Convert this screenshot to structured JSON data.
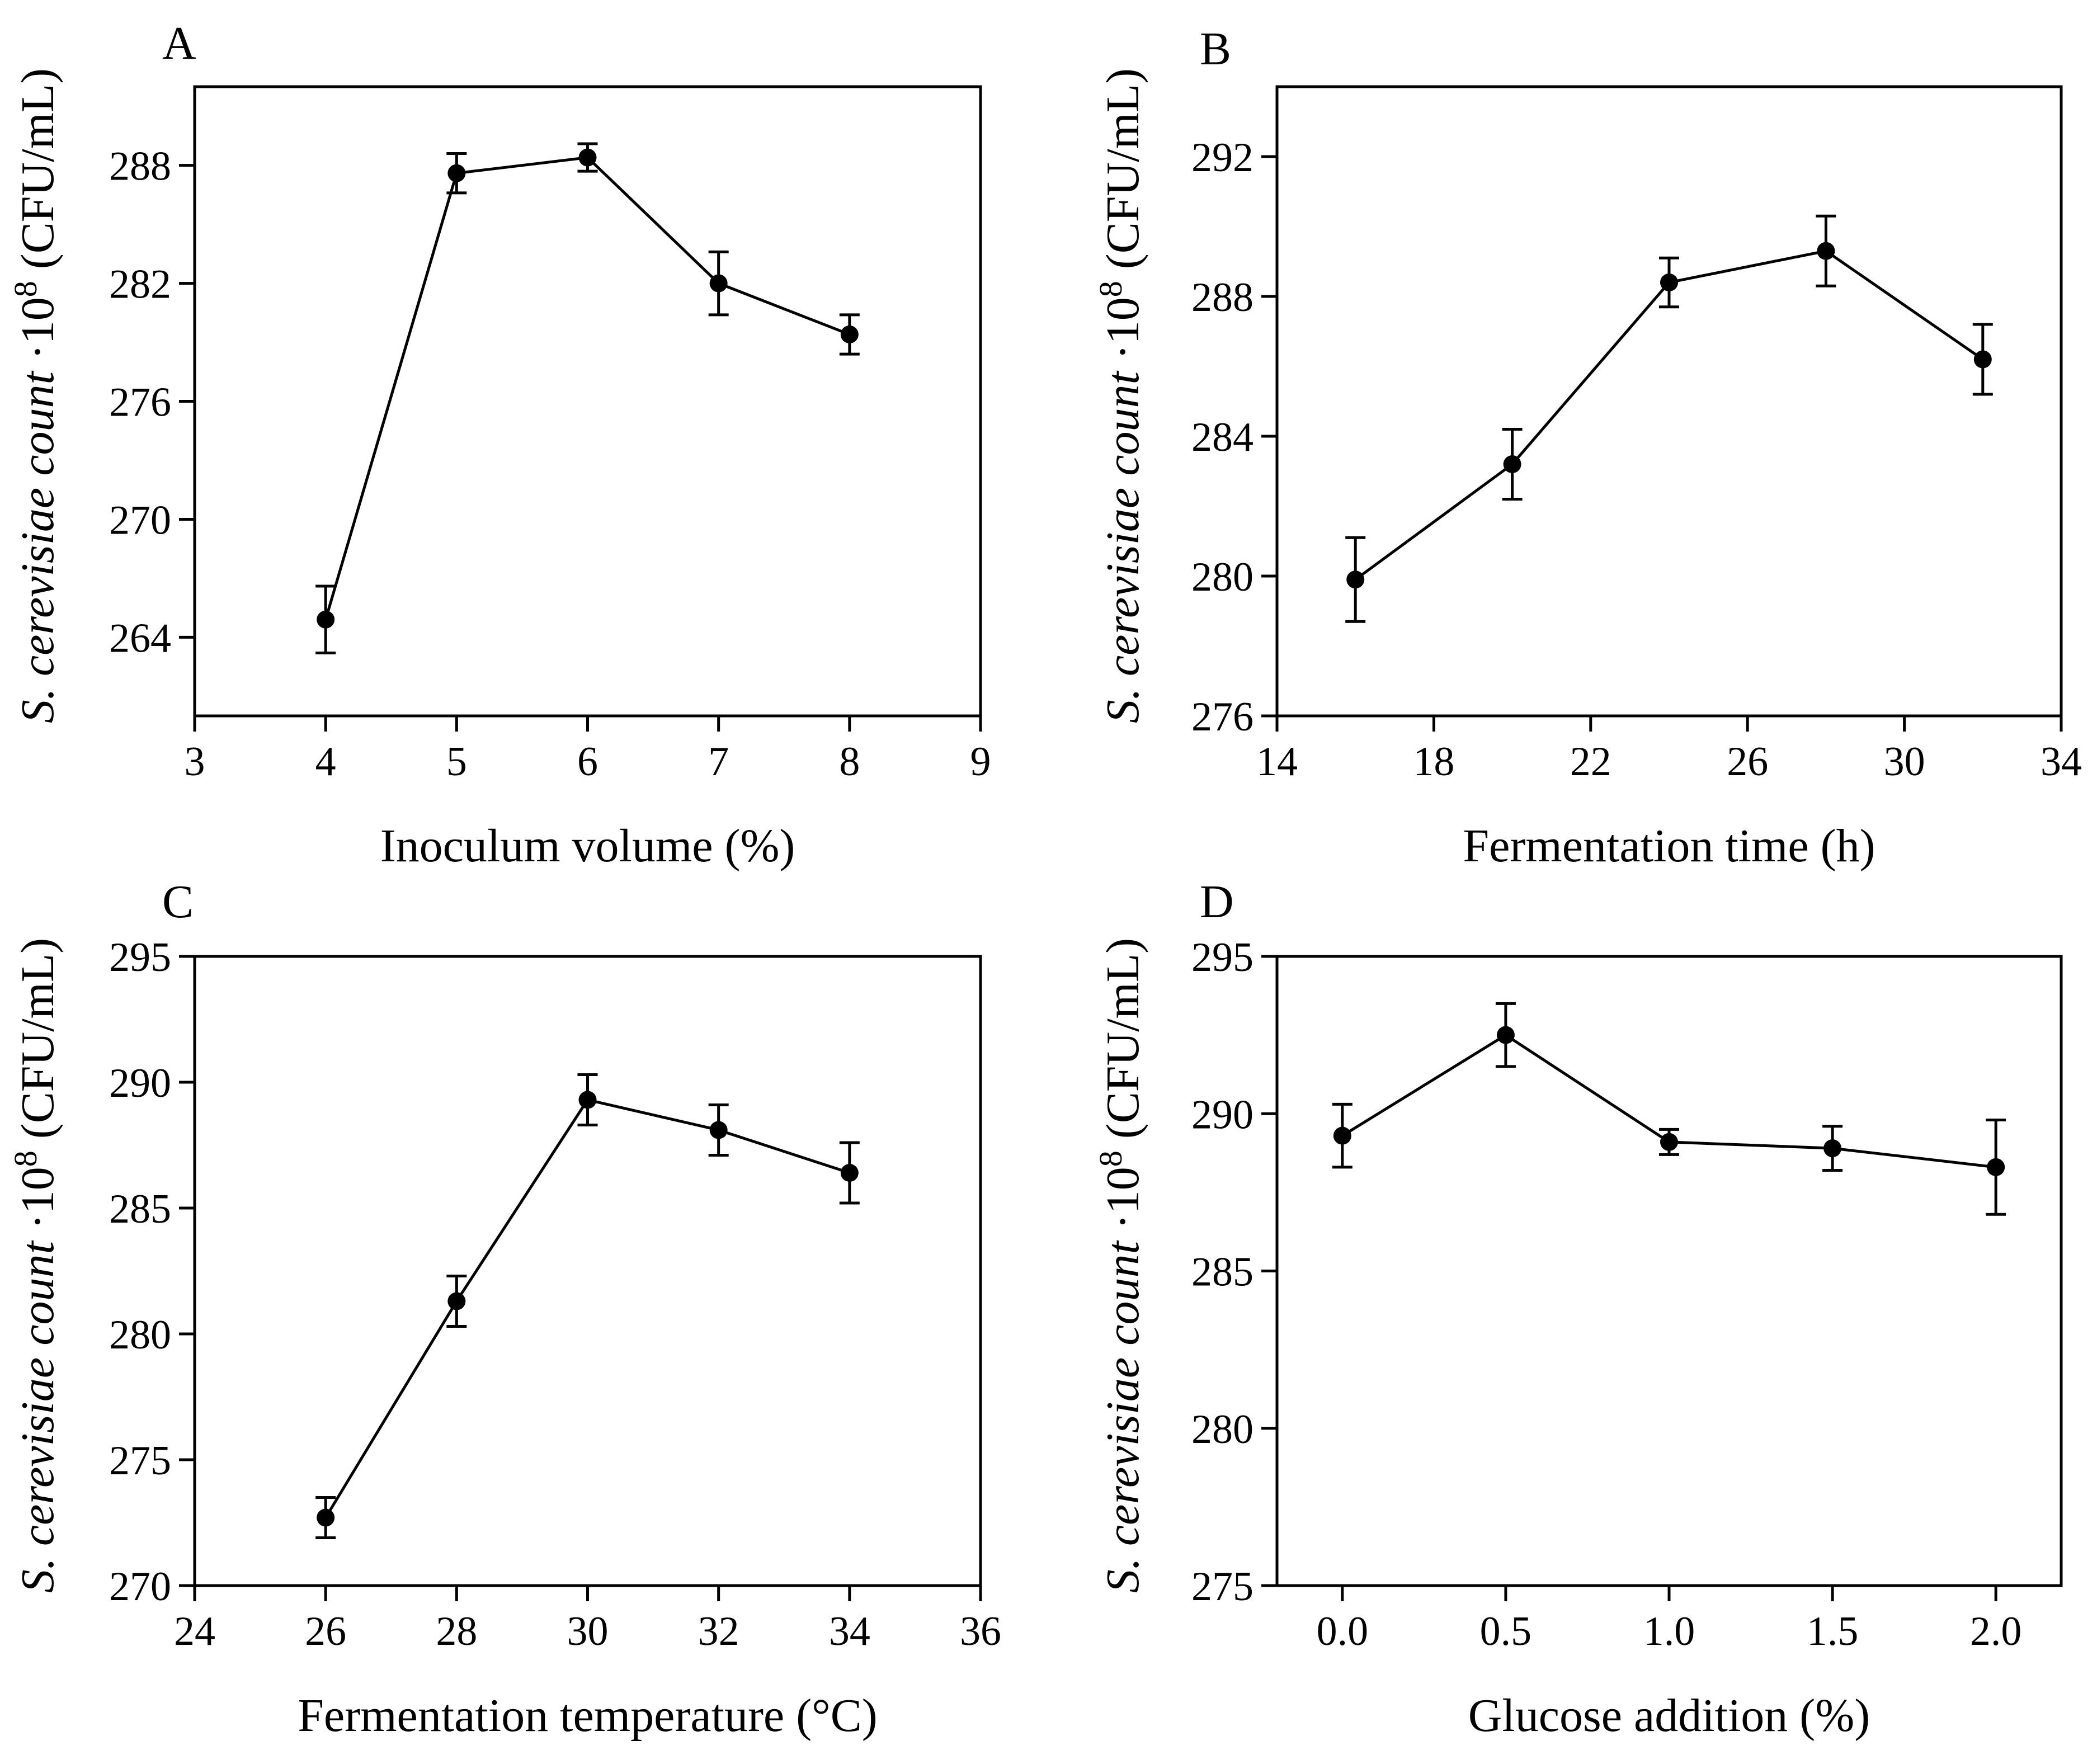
{
  "chart_data": [
    {
      "type": "line",
      "panel_label": "A",
      "xlabel": "Inoculum volume (%)",
      "ylabel": {
        "italic": "S. cerevisiae count",
        "rest": " ·10",
        "sup": "8",
        "unit": " (CFU/mL)"
      },
      "xlim": [
        3,
        9
      ],
      "ylim": [
        260,
        292
      ],
      "xticks": [
        3,
        4,
        5,
        6,
        7,
        8,
        9
      ],
      "xtick_labels": [
        "3",
        "4",
        "5",
        "6",
        "7",
        "8",
        "9"
      ],
      "yticks": [
        264,
        270,
        276,
        282,
        288
      ],
      "ytick_labels": [
        "264",
        "270",
        "276",
        "282",
        "288"
      ],
      "series": [
        {
          "name": "S. cerevisiae count",
          "x": [
            4,
            5,
            6,
            7,
            8
          ],
          "y": [
            264.9,
            287.6,
            288.4,
            282.0,
            279.4
          ],
          "err": [
            1.7,
            1.0,
            0.7,
            1.6,
            1.0
          ]
        }
      ]
    },
    {
      "type": "line",
      "panel_label": "B",
      "xlabel": "Fermentation time (h)",
      "ylabel": {
        "italic": "S. cerevisiae count",
        "rest": " ·10",
        "sup": "8",
        "unit": " (CFU/mL)"
      },
      "xlim": [
        14,
        34
      ],
      "ylim": [
        276,
        294
      ],
      "xticks": [
        14,
        18,
        22,
        26,
        30,
        34
      ],
      "xtick_labels": [
        "14",
        "18",
        "22",
        "26",
        "30",
        "34"
      ],
      "yticks": [
        276,
        280,
        284,
        288,
        292
      ],
      "ytick_labels": [
        "276",
        "280",
        "284",
        "288",
        "292"
      ],
      "series": [
        {
          "name": "S. cerevisiae count",
          "x": [
            16,
            20,
            24,
            28,
            32
          ],
          "y": [
            279.9,
            283.2,
            288.4,
            289.3,
            286.2
          ],
          "err": [
            1.2,
            1.0,
            0.7,
            1.0,
            1.0
          ]
        }
      ]
    },
    {
      "type": "line",
      "panel_label": "C",
      "xlabel": "Fermentation temperature (°C)",
      "ylabel": {
        "italic": "S. cerevisiae count",
        "rest": " ·10",
        "sup": "8",
        "unit": " (CFU/mL)"
      },
      "xlim": [
        24,
        36
      ],
      "ylim": [
        270,
        295
      ],
      "xticks": [
        24,
        26,
        28,
        30,
        32,
        34,
        36
      ],
      "xtick_labels": [
        "24",
        "26",
        "28",
        "30",
        "32",
        "34",
        "36"
      ],
      "yticks": [
        270,
        275,
        280,
        285,
        290,
        295
      ],
      "ytick_labels": [
        "270",
        "275",
        "280",
        "285",
        "290",
        "295"
      ],
      "series": [
        {
          "name": "S. cerevisiae count",
          "x": [
            26,
            28,
            30,
            32,
            34
          ],
          "y": [
            272.7,
            281.3,
            289.3,
            288.1,
            286.4
          ],
          "err": [
            0.8,
            1.0,
            1.0,
            1.0,
            1.2
          ]
        }
      ]
    },
    {
      "type": "line",
      "panel_label": "D",
      "xlabel": "Glucose addition (%)",
      "ylabel": {
        "italic": "S. cerevisiae count",
        "rest": " ·10",
        "sup": "8",
        "unit": " (CFU/mL)"
      },
      "xlim": [
        -0.2,
        2.2
      ],
      "ylim": [
        275,
        295
      ],
      "xticks": [
        0.0,
        0.5,
        1.0,
        1.5,
        2.0
      ],
      "xtick_labels": [
        "0.0",
        "0.5",
        "1.0",
        "1.5",
        "2.0"
      ],
      "yticks": [
        275,
        280,
        285,
        290,
        295
      ],
      "ytick_labels": [
        "275",
        "280",
        "285",
        "290",
        "295"
      ],
      "series": [
        {
          "name": "S. cerevisiae count",
          "x": [
            0.0,
            0.5,
            1.0,
            1.5,
            2.0
          ],
          "y": [
            289.3,
            292.5,
            289.1,
            288.9,
            288.3
          ],
          "err": [
            1.0,
            1.0,
            0.4,
            0.7,
            1.5
          ]
        }
      ]
    }
  ]
}
